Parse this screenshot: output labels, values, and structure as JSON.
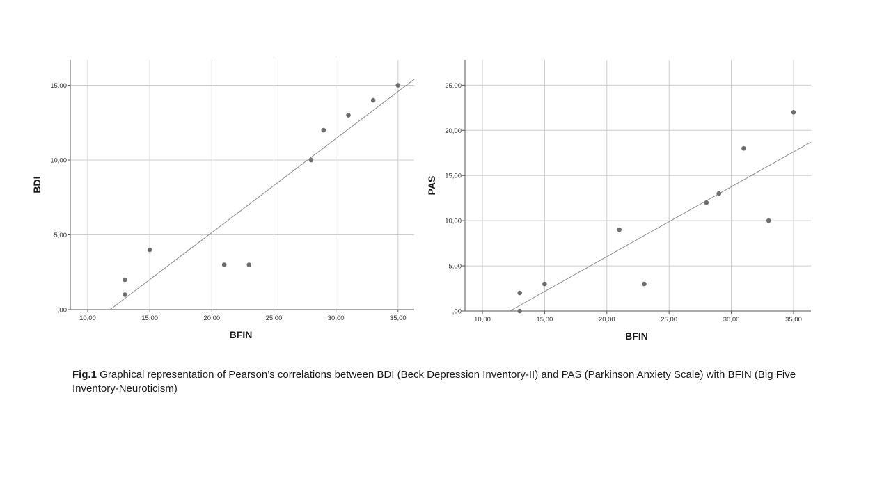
{
  "chart_data": [
    {
      "type": "scatter",
      "title": "",
      "xlabel": "BFIN",
      "ylabel": "BDI",
      "xlim": [
        8.6,
        36.3
      ],
      "ylim": [
        0,
        16.7
      ],
      "x_ticks": [
        10,
        15,
        20,
        25,
        30,
        35
      ],
      "y_ticks": [
        0,
        5,
        10,
        15
      ],
      "x_tick_labels": [
        "10,00",
        "15,00",
        "20,00",
        "25,00",
        "30,00",
        "35,00"
      ],
      "y_tick_labels": [
        ",00",
        "5,00",
        "10,00",
        "15,00"
      ],
      "grid": true,
      "points": [
        {
          "x": 13,
          "y": 1
        },
        {
          "x": 13,
          "y": 2
        },
        {
          "x": 15,
          "y": 4
        },
        {
          "x": 21,
          "y": 3
        },
        {
          "x": 23,
          "y": 3
        },
        {
          "x": 28,
          "y": 10
        },
        {
          "x": 29,
          "y": 12
        },
        {
          "x": 31,
          "y": 13
        },
        {
          "x": 33,
          "y": 14
        },
        {
          "x": 35,
          "y": 15
        }
      ],
      "fit_line": {
        "x": [
          11.8,
          36.3
        ],
        "y": [
          0,
          15.4
        ]
      },
      "colors": {
        "points": "#6e6e6e",
        "line": "#8a8a8a",
        "grid": "#cccccc",
        "axis": "#555555"
      }
    },
    {
      "type": "scatter",
      "title": "",
      "xlabel": "BFIN",
      "ylabel": "PAS",
      "xlim": [
        8.6,
        36.4
      ],
      "ylim": [
        0,
        27.8
      ],
      "x_ticks": [
        10,
        15,
        20,
        25,
        30,
        35
      ],
      "y_ticks": [
        0,
        5,
        10,
        15,
        20,
        25
      ],
      "x_tick_labels": [
        "10,00",
        "15,00",
        "20,00",
        "25,00",
        "30,00",
        "35,00"
      ],
      "y_tick_labels": [
        ",00",
        "5,00",
        "10,00",
        "15,00",
        "20,00",
        "25,00"
      ],
      "grid": true,
      "points": [
        {
          "x": 13,
          "y": 0
        },
        {
          "x": 13,
          "y": 2
        },
        {
          "x": 15,
          "y": 3
        },
        {
          "x": 21,
          "y": 9
        },
        {
          "x": 23,
          "y": 3
        },
        {
          "x": 28,
          "y": 12
        },
        {
          "x": 29,
          "y": 13
        },
        {
          "x": 31,
          "y": 18
        },
        {
          "x": 33,
          "y": 10
        },
        {
          "x": 35,
          "y": 22
        }
      ],
      "fit_line": {
        "x": [
          12.2,
          36.4
        ],
        "y": [
          0,
          18.7
        ]
      },
      "colors": {
        "points": "#6e6e6e",
        "line": "#8a8a8a",
        "grid": "#cccccc",
        "axis": "#555555"
      }
    }
  ],
  "caption": {
    "label": "Fig.1",
    "text": " Graphical representation of Pearson’s correlations between BDI (Beck Depression Inventory-II) and PAS (Parkinson Anxiety Scale) with BFIN (Big Five Inventory-Neuroticism)"
  }
}
